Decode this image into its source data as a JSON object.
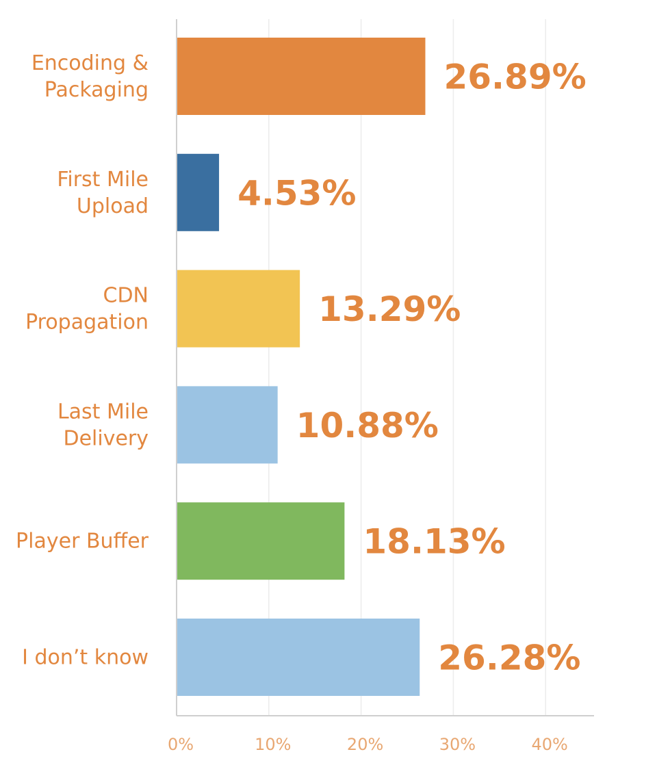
{
  "chart_data": {
    "type": "bar",
    "orientation": "horizontal",
    "categories": [
      [
        "Encoding &",
        "Packaging"
      ],
      [
        "First Mile",
        "Upload"
      ],
      [
        "CDN",
        "Propagation"
      ],
      [
        "Last Mile",
        "Delivery"
      ],
      [
        "Player Buffer"
      ],
      [
        "I don’t know"
      ]
    ],
    "values": [
      26.89,
      4.53,
      13.29,
      10.88,
      18.13,
      26.28
    ],
    "value_labels": [
      "26.89%",
      "4.53%",
      "13.29%",
      "10.88%",
      "18.13%",
      "26.28%"
    ],
    "bar_colors": [
      "#e2873f",
      "#3a6fa0",
      "#f2c453",
      "#9bc3e3",
      "#80b85e",
      "#9bc3e3"
    ],
    "label_color": "#e2873f",
    "xlim": [
      0,
      45
    ],
    "xticks": [
      0,
      10,
      20,
      30,
      40
    ],
    "xtick_labels": [
      "0%",
      "10%",
      "20%",
      "30%",
      "40%"
    ],
    "grid": "vertical",
    "legend": "none",
    "title": "",
    "xlabel": "",
    "ylabel": ""
  }
}
